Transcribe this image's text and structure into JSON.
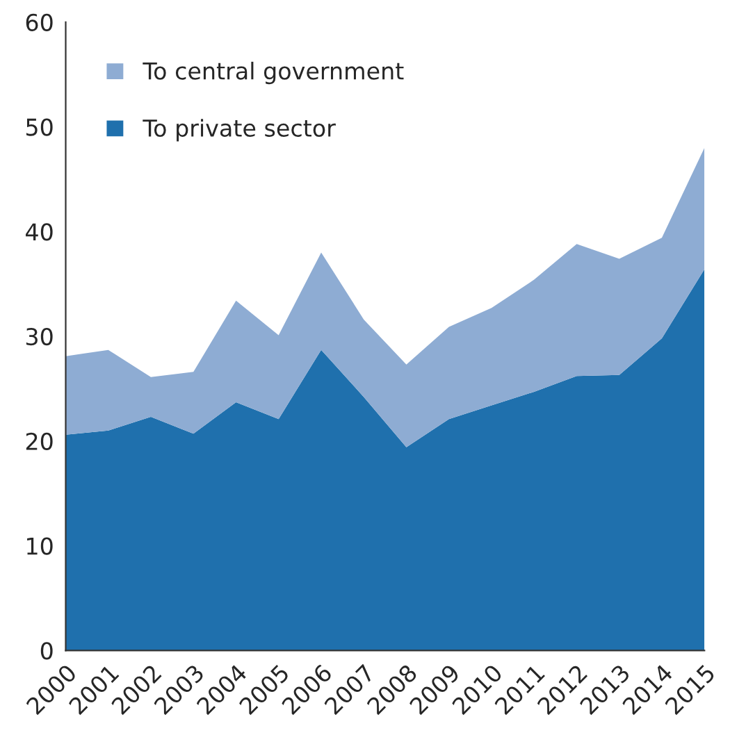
{
  "chart_data": {
    "type": "area",
    "stacked": true,
    "x": [
      2000,
      2001,
      2002,
      2003,
      2004,
      2005,
      2006,
      2007,
      2008,
      2009,
      2010,
      2011,
      2012,
      2013,
      2014,
      2015
    ],
    "series": [
      {
        "name": "To private sector",
        "color": "#1f70ad",
        "values": [
          20.6,
          21.0,
          22.3,
          20.7,
          23.7,
          22.1,
          28.7,
          24.2,
          19.4,
          22.1,
          23.4,
          24.7,
          26.2,
          26.3,
          29.8,
          36.4
        ]
      },
      {
        "name": "To central government",
        "color": "#8eacd3",
        "values": [
          7.5,
          7.7,
          3.8,
          5.9,
          9.7,
          8.0,
          9.3,
          7.4,
          7.9,
          8.8,
          9.3,
          10.7,
          12.6,
          11.1,
          9.6,
          11.6
        ]
      }
    ],
    "xlim": [
      2000,
      2015
    ],
    "xticks": [
      2000,
      2001,
      2002,
      2003,
      2004,
      2005,
      2006,
      2007,
      2008,
      2009,
      2010,
      2011,
      2012,
      2013,
      2014,
      2015
    ],
    "ylim": [
      0,
      60
    ],
    "yticks": [
      0,
      10,
      20,
      30,
      40,
      50,
      60
    ],
    "grid": false,
    "legend": "top left"
  }
}
